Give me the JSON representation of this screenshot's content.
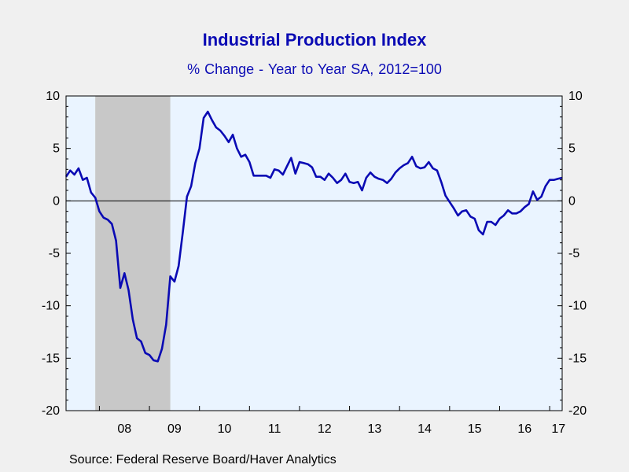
{
  "chart_data": {
    "type": "line",
    "title": "Industrial Production Index",
    "subtitle": "% Change - Year to Year     SA, 2012=100",
    "source": "Source:  Federal Reserve Board/Haver Analytics",
    "ylim": [
      -20,
      10
    ],
    "yticks": [
      "10",
      "5",
      "0",
      "-5",
      "-10",
      "-15",
      "-20"
    ],
    "yticks_right": [
      "10",
      "5",
      "0",
      "-5",
      "-10",
      "-15",
      "-20"
    ],
    "xlim": [
      2007.333,
      2017.25
    ],
    "xticks": [
      {
        "label": "08",
        "year": 2008
      },
      {
        "label": "09",
        "year": 2009
      },
      {
        "label": "10",
        "year": 2010
      },
      {
        "label": "11",
        "year": 2011
      },
      {
        "label": "12",
        "year": 2012
      },
      {
        "label": "13",
        "year": 2013
      },
      {
        "label": "14",
        "year": 2014
      },
      {
        "label": "15",
        "year": 2015
      },
      {
        "label": "16",
        "year": 2016
      },
      {
        "label": "17",
        "year": 2017
      }
    ],
    "recession": {
      "start": 2007.917,
      "end": 2009.417
    },
    "grid": false,
    "zero_line": true,
    "colors": {
      "line": "#0a0ab4",
      "plot_bg": "#eaf4ff",
      "recession": "#c8c8c8",
      "title": "#0b0bb4"
    },
    "series": [
      {
        "x": [
          2007.333,
          2007.417,
          2007.5,
          2007.583,
          2007.667,
          2007.75,
          2007.833,
          2007.917,
          2008.0,
          2008.083,
          2008.167,
          2008.25,
          2008.333,
          2008.417,
          2008.5,
          2008.583,
          2008.667,
          2008.75,
          2008.833,
          2008.917,
          2009.0,
          2009.083,
          2009.167,
          2009.25,
          2009.333,
          2009.417,
          2009.5,
          2009.583,
          2009.667,
          2009.75,
          2009.833,
          2009.917,
          2010.0,
          2010.083,
          2010.167,
          2010.25,
          2010.333,
          2010.417,
          2010.5,
          2010.583,
          2010.667,
          2010.75,
          2010.833,
          2010.917,
          2011.0,
          2011.083,
          2011.167,
          2011.25,
          2011.333,
          2011.417,
          2011.5,
          2011.583,
          2011.667,
          2011.75,
          2011.833,
          2011.917,
          2012.0,
          2012.083,
          2012.167,
          2012.25,
          2012.333,
          2012.417,
          2012.5,
          2012.583,
          2012.667,
          2012.75,
          2012.833,
          2012.917,
          2013.0,
          2013.083,
          2013.167,
          2013.25,
          2013.333,
          2013.417,
          2013.5,
          2013.583,
          2013.667,
          2013.75,
          2013.833,
          2013.917,
          2014.0,
          2014.083,
          2014.167,
          2014.25,
          2014.333,
          2014.417,
          2014.5,
          2014.583,
          2014.667,
          2014.75,
          2014.833,
          2014.917,
          2015.0,
          2015.083,
          2015.167,
          2015.25,
          2015.333,
          2015.417,
          2015.5,
          2015.583,
          2015.667,
          2015.75,
          2015.833,
          2015.917,
          2016.0,
          2016.083,
          2016.167,
          2016.25,
          2016.333,
          2016.417,
          2016.5,
          2016.583,
          2016.667,
          2016.75,
          2016.833,
          2016.917,
          2017.0,
          2017.083,
          2017.167,
          2017.25
        ],
        "y": [
          2.3,
          2.9,
          2.5,
          3.1,
          2.0,
          2.2,
          0.8,
          0.3,
          -1.0,
          -1.6,
          -1.8,
          -2.2,
          -3.8,
          -8.3,
          -6.9,
          -8.5,
          -11.3,
          -13.1,
          -13.4,
          -14.5,
          -14.7,
          -15.2,
          -15.3,
          -14.1,
          -11.8,
          -7.2,
          -7.7,
          -6.2,
          -3.0,
          0.4,
          1.4,
          3.6,
          5.0,
          7.9,
          8.5,
          7.7,
          7.0,
          6.7,
          6.2,
          5.6,
          6.3,
          5.0,
          4.2,
          4.4,
          3.7,
          2.4,
          2.4,
          2.4,
          2.4,
          2.2,
          3.0,
          2.9,
          2.5,
          3.3,
          4.1,
          2.6,
          3.7,
          3.6,
          3.5,
          3.2,
          2.3,
          2.3,
          2.0,
          2.6,
          2.2,
          1.7,
          2.0,
          2.6,
          1.8,
          1.7,
          1.8,
          1.0,
          2.2,
          2.7,
          2.3,
          2.1,
          2.0,
          1.7,
          2.1,
          2.7,
          3.1,
          3.4,
          3.6,
          4.2,
          3.3,
          3.1,
          3.2,
          3.7,
          3.1,
          2.9,
          1.8,
          0.5,
          -0.1,
          -0.7,
          -1.4,
          -1.0,
          -0.9,
          -1.5,
          -1.7,
          -2.8,
          -3.2,
          -2.0,
          -2.0,
          -2.3,
          -1.7,
          -1.4,
          -0.9,
          -1.2,
          -1.2,
          -1.0,
          -0.6,
          -0.3,
          0.9,
          0.1,
          0.4,
          1.4,
          2.0,
          2.0,
          2.1,
          2.2
        ]
      }
    ]
  }
}
